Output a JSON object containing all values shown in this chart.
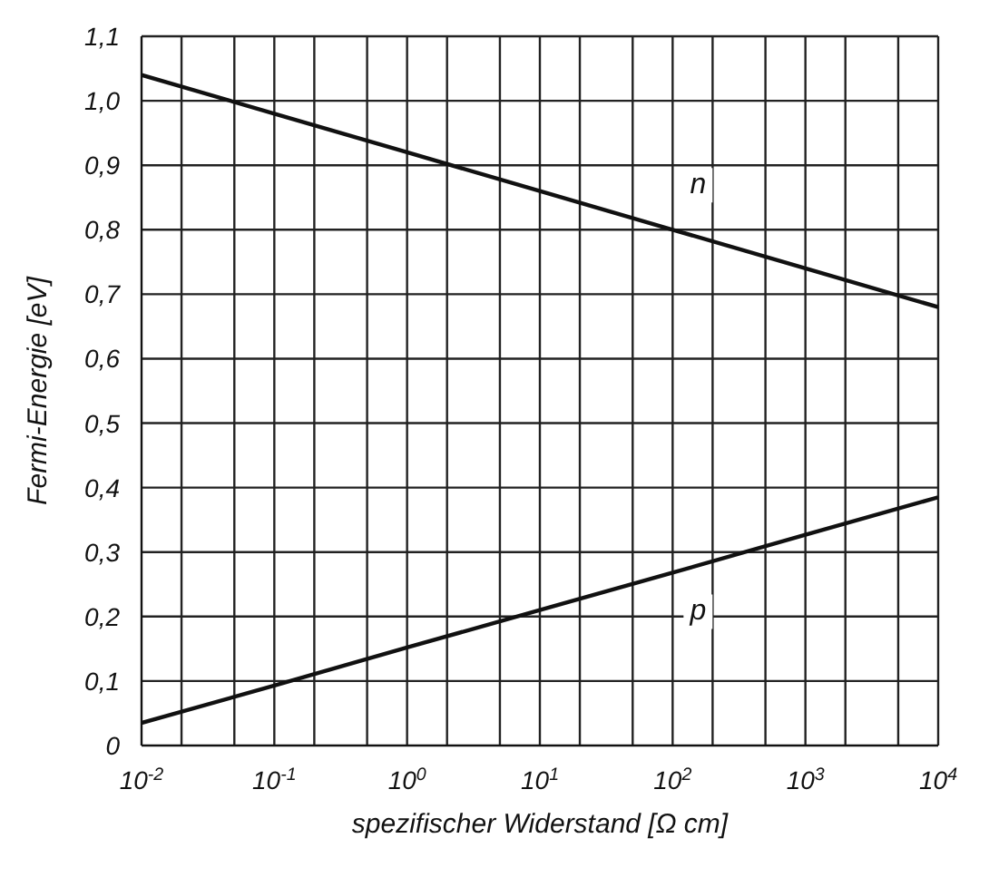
{
  "chart_data": {
    "type": "line",
    "xlabel": "spezifischer Widerstand [Ω cm]",
    "ylabel": "Fermi-Energie [eV]",
    "log": "x",
    "x": [
      0.01,
      0.1,
      1,
      10,
      100,
      1000,
      10000
    ],
    "series": [
      {
        "name": "n",
        "color": "#111111",
        "values": [
          1.04,
          0.98,
          0.92,
          0.86,
          0.8,
          0.74,
          0.68
        ]
      },
      {
        "name": "p",
        "color": "#111111",
        "values": [
          0.035,
          0.093,
          0.152,
          0.21,
          0.268,
          0.327,
          0.385
        ]
      }
    ],
    "xlim": [
      0.01,
      10000
    ],
    "xticks": [
      {
        "value": 0.01,
        "label": "10$^{-2}$"
      },
      {
        "value": 0.02,
        "label": null
      },
      {
        "value": 0.05,
        "label": null
      },
      {
        "value": 0.1,
        "label": "10$^{-1}$"
      },
      {
        "value": 0.2,
        "label": null
      },
      {
        "value": 0.5,
        "label": null
      },
      {
        "value": 1,
        "label": "10$^{0}$"
      },
      {
        "value": 2,
        "label": null
      },
      {
        "value": 5,
        "label": null
      },
      {
        "value": 10,
        "label": "10$^{1}$"
      },
      {
        "value": 20,
        "label": null
      },
      {
        "value": 50,
        "label": null
      },
      {
        "value": 100,
        "label": "10$^{2}$"
      },
      {
        "value": 200,
        "label": null
      },
      {
        "value": 500,
        "label": null
      },
      {
        "value": 1000,
        "label": "10$^{3}$"
      },
      {
        "value": 2000,
        "label": null
      },
      {
        "value": 5000,
        "label": null
      },
      {
        "value": 10000,
        "label": "10$^{4}$"
      }
    ],
    "ylim": [
      0,
      1.1
    ],
    "yticks": [
      0,
      {
        "value": 0.1,
        "label": "0,1"
      },
      {
        "value": 0.2,
        "label": "0,2"
      },
      {
        "value": 0.3,
        "label": "0,3"
      },
      {
        "value": 0.4,
        "label": "0,4"
      },
      {
        "value": 0.5,
        "label": "0,5"
      },
      {
        "value": 0.6,
        "label": "0,6"
      },
      {
        "value": 0.7,
        "label": "0,7"
      },
      {
        "value": 0.8,
        "label": "0,8"
      },
      {
        "value": 0.9,
        "label": "0,9"
      },
      {
        "value": 1.0,
        "label": "1,0"
      },
      {
        "value": 1.1,
        "label": "1,1"
      }
    ],
    "grid": true,
    "marker": "none",
    "line_style": "solid"
  }
}
